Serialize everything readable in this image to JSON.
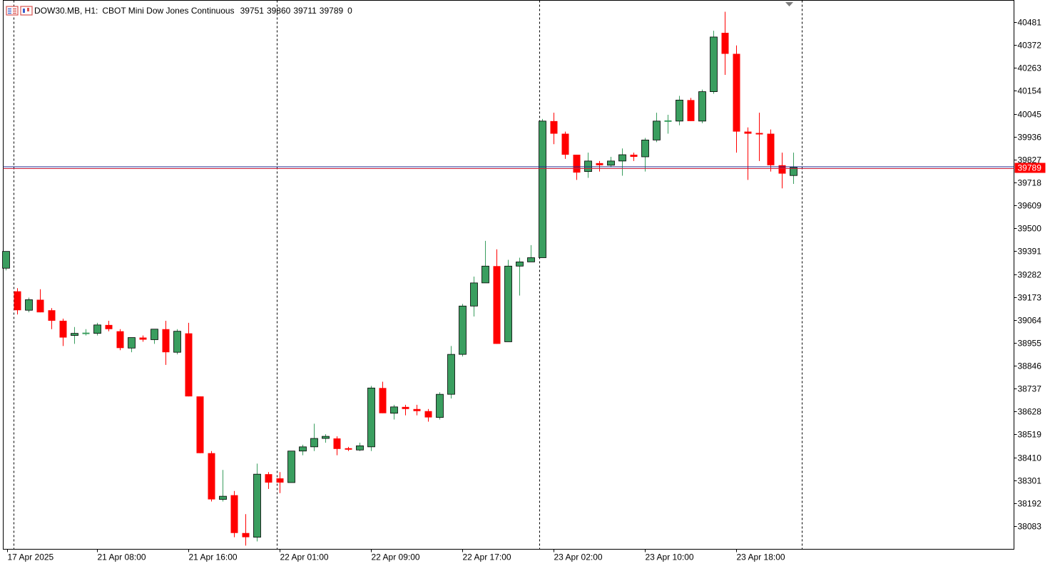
{
  "header": {
    "symbol": "DOW30.MB, H1:",
    "description": "CBOT Mini Dow Jones Continuous",
    "open": "39751",
    "high": "39860",
    "low": "39711",
    "close": "39789",
    "volume": "0"
  },
  "colors": {
    "up": "#3a9e5f",
    "down": "#ff0000",
    "border": "#000000",
    "bid_line": "#1f2a8f",
    "ask_line": "#c81e3a",
    "price_tag": "#ff0000",
    "last_candle_up": "#22dd44"
  },
  "current_price": {
    "value": 39789,
    "label": "39789"
  },
  "chart_data": {
    "type": "candlestick",
    "ylim": [
      37975,
      40530
    ],
    "y_ticks": [
      {
        "value": 40481,
        "label": "40481"
      },
      {
        "value": 40372,
        "label": "40372"
      },
      {
        "value": 40263,
        "label": "40263"
      },
      {
        "value": 40154,
        "label": "40154"
      },
      {
        "value": 40045,
        "label": "40045"
      },
      {
        "value": 39936,
        "label": "39936"
      },
      {
        "value": 39827,
        "label": "39827"
      },
      {
        "value": 39718,
        "label": "39718"
      },
      {
        "value": 39609,
        "label": "39609"
      },
      {
        "value": 39500,
        "label": "39500"
      },
      {
        "value": 39391,
        "label": "39391"
      },
      {
        "value": 39282,
        "label": "39282"
      },
      {
        "value": 39173,
        "label": "39173"
      },
      {
        "value": 39064,
        "label": "39064"
      },
      {
        "value": 38955,
        "label": "38955"
      },
      {
        "value": 38846,
        "label": "38846"
      },
      {
        "value": 38737,
        "label": "38737"
      },
      {
        "value": 38628,
        "label": "38628"
      },
      {
        "value": 38519,
        "label": "38519"
      },
      {
        "value": 38410,
        "label": "38410"
      },
      {
        "value": 38301,
        "label": "38301"
      },
      {
        "value": 38192,
        "label": "38192"
      },
      {
        "value": 38083,
        "label": "38083"
      }
    ],
    "x_ticks": [
      {
        "index": -0.9,
        "label": "17 Apr 2025"
      },
      {
        "index": 7,
        "label": "21 Apr 08:00"
      },
      {
        "index": 15,
        "label": "21 Apr 16:00"
      },
      {
        "index": 23,
        "label": "22 Apr 01:00"
      },
      {
        "index": 31,
        "label": "22 Apr 09:00"
      },
      {
        "index": 39,
        "label": "22 Apr 17:00"
      },
      {
        "index": 47,
        "label": "23 Apr 02:00"
      },
      {
        "index": 55,
        "label": "23 Apr 10:00"
      },
      {
        "index": 63,
        "label": "23 Apr 18:00"
      }
    ],
    "day_separators": [
      -0.3,
      22.75,
      45.75,
      68.75
    ],
    "first_visible_index": -1,
    "candles": [
      {
        "o": 39310,
        "h": 39390,
        "l": 39300,
        "c": 39390
      },
      {
        "o": 39200,
        "h": 39215,
        "l": 39090,
        "c": 39110
      },
      {
        "o": 39110,
        "h": 39170,
        "l": 39100,
        "c": 39160
      },
      {
        "o": 39160,
        "h": 39210,
        "l": 39100,
        "c": 39100
      },
      {
        "o": 39110,
        "h": 39120,
        "l": 39020,
        "c": 39060
      },
      {
        "o": 39060,
        "h": 39070,
        "l": 38940,
        "c": 38980
      },
      {
        "o": 38990,
        "h": 39030,
        "l": 38950,
        "c": 39000
      },
      {
        "o": 39000,
        "h": 39020,
        "l": 38990,
        "c": 39000
      },
      {
        "o": 39000,
        "h": 39050,
        "l": 38990,
        "c": 39040
      },
      {
        "o": 39040,
        "h": 39060,
        "l": 39010,
        "c": 39020
      },
      {
        "o": 39010,
        "h": 39020,
        "l": 38920,
        "c": 38930
      },
      {
        "o": 38930,
        "h": 38980,
        "l": 38910,
        "c": 38980
      },
      {
        "o": 38980,
        "h": 38990,
        "l": 38960,
        "c": 38970
      },
      {
        "o": 38970,
        "h": 39020,
        "l": 38950,
        "c": 39020
      },
      {
        "o": 39020,
        "h": 39060,
        "l": 38850,
        "c": 38910
      },
      {
        "o": 38910,
        "h": 39020,
        "l": 38900,
        "c": 39010
      },
      {
        "o": 39000,
        "h": 39050,
        "l": 38700,
        "c": 38700
      },
      {
        "o": 38700,
        "h": 38700,
        "l": 38430,
        "c": 38430
      },
      {
        "o": 38430,
        "h": 38440,
        "l": 38200,
        "c": 38210
      },
      {
        "o": 38210,
        "h": 38350,
        "l": 38200,
        "c": 38225
      },
      {
        "o": 38230,
        "h": 38250,
        "l": 38030,
        "c": 38050
      },
      {
        "o": 38050,
        "h": 38140,
        "l": 37990,
        "c": 38030
      },
      {
        "o": 38030,
        "h": 38380,
        "l": 38010,
        "c": 38330
      },
      {
        "o": 38330,
        "h": 38340,
        "l": 38260,
        "c": 38290
      },
      {
        "o": 38310,
        "h": 38340,
        "l": 38240,
        "c": 38290
      },
      {
        "o": 38290,
        "h": 38440,
        "l": 38290,
        "c": 38440
      },
      {
        "o": 38440,
        "h": 38470,
        "l": 38420,
        "c": 38460
      },
      {
        "o": 38460,
        "h": 38570,
        "l": 38440,
        "c": 38500
      },
      {
        "o": 38500,
        "h": 38520,
        "l": 38480,
        "c": 38510
      },
      {
        "o": 38500,
        "h": 38510,
        "l": 38420,
        "c": 38450
      },
      {
        "o": 38450,
        "h": 38460,
        "l": 38440,
        "c": 38445
      },
      {
        "o": 38445,
        "h": 38480,
        "l": 38440,
        "c": 38465
      },
      {
        "o": 38460,
        "h": 38750,
        "l": 38440,
        "c": 38740
      },
      {
        "o": 38740,
        "h": 38770,
        "l": 38620,
        "c": 38620
      },
      {
        "o": 38620,
        "h": 38660,
        "l": 38590,
        "c": 38650
      },
      {
        "o": 38650,
        "h": 38660,
        "l": 38610,
        "c": 38640
      },
      {
        "o": 38640,
        "h": 38660,
        "l": 38610,
        "c": 38630
      },
      {
        "o": 38630,
        "h": 38640,
        "l": 38580,
        "c": 38600
      },
      {
        "o": 38600,
        "h": 38720,
        "l": 38590,
        "c": 38710
      },
      {
        "o": 38710,
        "h": 38940,
        "l": 38690,
        "c": 38900
      },
      {
        "o": 38900,
        "h": 39140,
        "l": 38890,
        "c": 39130
      },
      {
        "o": 39130,
        "h": 39270,
        "l": 39080,
        "c": 39240
      },
      {
        "o": 39240,
        "h": 39440,
        "l": 39240,
        "c": 39320
      },
      {
        "o": 39320,
        "h": 39400,
        "l": 38950,
        "c": 38950
      },
      {
        "o": 38960,
        "h": 39350,
        "l": 38960,
        "c": 39320
      },
      {
        "o": 39320,
        "h": 39360,
        "l": 39180,
        "c": 39340
      },
      {
        "o": 39340,
        "h": 39420,
        "l": 39340,
        "c": 39360
      },
      {
        "o": 39360,
        "h": 40020,
        "l": 39360,
        "c": 40010
      },
      {
        "o": 40010,
        "h": 40050,
        "l": 39900,
        "c": 39950
      },
      {
        "o": 39950,
        "h": 39960,
        "l": 39830,
        "c": 39850
      },
      {
        "o": 39850,
        "h": 39850,
        "l": 39730,
        "c": 39765
      },
      {
        "o": 39770,
        "h": 39860,
        "l": 39740,
        "c": 39820
      },
      {
        "o": 39810,
        "h": 39820,
        "l": 39770,
        "c": 39800
      },
      {
        "o": 39800,
        "h": 39840,
        "l": 39790,
        "c": 39820
      },
      {
        "o": 39820,
        "h": 39880,
        "l": 39750,
        "c": 39850
      },
      {
        "o": 39850,
        "h": 39860,
        "l": 39820,
        "c": 39840
      },
      {
        "o": 39840,
        "h": 39930,
        "l": 39770,
        "c": 39920
      },
      {
        "o": 39920,
        "h": 40050,
        "l": 39910,
        "c": 40010
      },
      {
        "o": 40010,
        "h": 40040,
        "l": 39950,
        "c": 40010
      },
      {
        "o": 40010,
        "h": 40130,
        "l": 39990,
        "c": 40110
      },
      {
        "o": 40110,
        "h": 40120,
        "l": 40010,
        "c": 40010
      },
      {
        "o": 40010,
        "h": 40160,
        "l": 40000,
        "c": 40150
      },
      {
        "o": 40150,
        "h": 40440,
        "l": 40140,
        "c": 40410
      },
      {
        "o": 40430,
        "h": 40530,
        "l": 40230,
        "c": 40330
      },
      {
        "o": 40330,
        "h": 40370,
        "l": 39860,
        "c": 39960
      },
      {
        "o": 39960,
        "h": 39980,
        "l": 39730,
        "c": 39950
      },
      {
        "o": 39950,
        "h": 40050,
        "l": 39820,
        "c": 39945
      },
      {
        "o": 39950,
        "h": 39970,
        "l": 39770,
        "c": 39800
      },
      {
        "o": 39800,
        "h": 39860,
        "l": 39690,
        "c": 39760
      },
      {
        "o": 39751,
        "h": 39860,
        "l": 39711,
        "c": 39789
      }
    ]
  }
}
